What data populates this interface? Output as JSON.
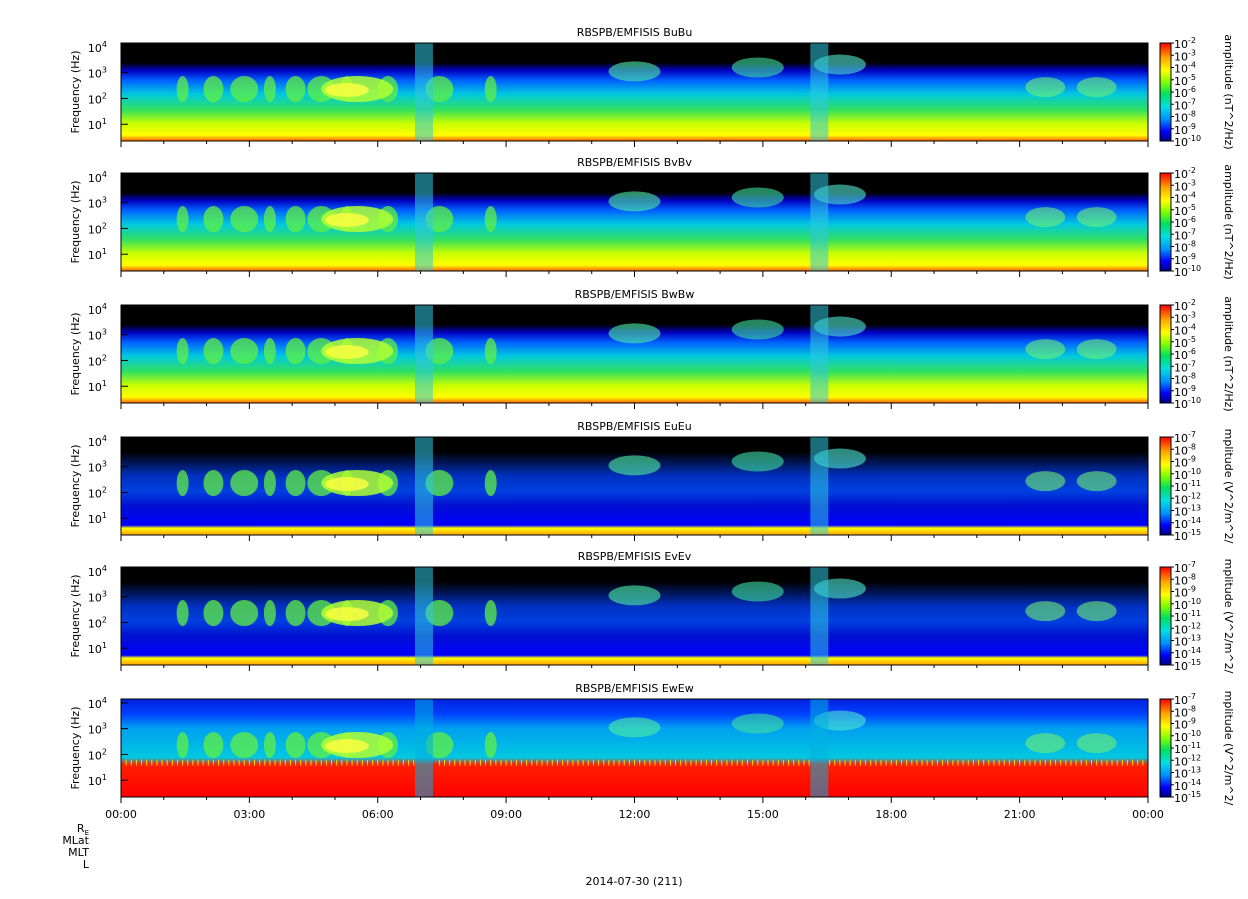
{
  "chart_data": [
    {
      "type": "heatmap",
      "title": "RBSPB/EMFISIS  BuBu",
      "ylabel": "Frequency (Hz)",
      "zlabel": "amplitude (nT^2/Hz)",
      "y_scale": "log",
      "y_ticks": [
        "10",
        "10",
        "10",
        "10"
      ],
      "y_tick_exponents": [
        "1",
        "2",
        "3",
        "4"
      ],
      "z_scale": "log",
      "z_ticks": [
        "10",
        "10",
        "10",
        "10",
        "10",
        "10",
        "10",
        "10",
        "10"
      ],
      "z_tick_exponents": [
        "-2",
        "-3",
        "-4",
        "-5",
        "-6",
        "-7",
        "-8",
        "-9",
        "-10"
      ],
      "zlim": [
        1e-10,
        0.01
      ]
    },
    {
      "type": "heatmap",
      "title": "RBSPB/EMFISIS  BvBv",
      "ylabel": "Frequency (Hz)",
      "zlabel": "amplitude (nT^2/Hz)",
      "y_scale": "log",
      "y_ticks": [
        "10",
        "10",
        "10",
        "10"
      ],
      "y_tick_exponents": [
        "1",
        "2",
        "3",
        "4"
      ],
      "z_scale": "log",
      "z_ticks": [
        "10",
        "10",
        "10",
        "10",
        "10",
        "10",
        "10",
        "10",
        "10"
      ],
      "z_tick_exponents": [
        "-2",
        "-3",
        "-4",
        "-5",
        "-6",
        "-7",
        "-8",
        "-9",
        "-10"
      ],
      "zlim": [
        1e-10,
        0.01
      ]
    },
    {
      "type": "heatmap",
      "title": "RBSPB/EMFISIS  BwBw",
      "ylabel": "Frequency (Hz)",
      "zlabel": "amplitude (nT^2/Hz)",
      "y_scale": "log",
      "y_ticks": [
        "10",
        "10",
        "10",
        "10"
      ],
      "y_tick_exponents": [
        "1",
        "2",
        "3",
        "4"
      ],
      "z_scale": "log",
      "z_ticks": [
        "10",
        "10",
        "10",
        "10",
        "10",
        "10",
        "10",
        "10",
        "10"
      ],
      "z_tick_exponents": [
        "-2",
        "-3",
        "-4",
        "-5",
        "-6",
        "-7",
        "-8",
        "-9",
        "-10"
      ],
      "zlim": [
        1e-10,
        0.01
      ]
    },
    {
      "type": "heatmap",
      "title": "RBSPB/EMFISIS  EuEu",
      "ylabel": "Frequency (Hz)",
      "zlabel": "mplitude (V^2/m^2/",
      "y_scale": "log",
      "y_ticks": [
        "10",
        "10",
        "10",
        "10"
      ],
      "y_tick_exponents": [
        "1",
        "2",
        "3",
        "4"
      ],
      "z_scale": "log",
      "z_ticks": [
        "10",
        "10",
        "10",
        "10",
        "10",
        "10",
        "10",
        "10",
        "10"
      ],
      "z_tick_exponents": [
        "-7",
        "-8",
        "-9",
        "-10",
        "-11",
        "-12",
        "-13",
        "-14",
        "-15"
      ],
      "zlim": [
        1e-15,
        1e-07
      ]
    },
    {
      "type": "heatmap",
      "title": "RBSPB/EMFISIS  EvEv",
      "ylabel": "Frequency (Hz)",
      "zlabel": "mplitude (V^2/m^2/",
      "y_scale": "log",
      "y_ticks": [
        "10",
        "10",
        "10",
        "10"
      ],
      "y_tick_exponents": [
        "1",
        "2",
        "3",
        "4"
      ],
      "z_scale": "log",
      "z_ticks": [
        "10",
        "10",
        "10",
        "10",
        "10",
        "10",
        "10",
        "10",
        "10"
      ],
      "z_tick_exponents": [
        "-7",
        "-8",
        "-9",
        "-10",
        "-11",
        "-12",
        "-13",
        "-14",
        "-15"
      ],
      "zlim": [
        1e-15,
        1e-07
      ]
    },
    {
      "type": "heatmap",
      "title": "RBSPB/EMFISIS  EwEw",
      "ylabel": "Frequency (Hz)",
      "zlabel": "mplitude (V^2/m^2/",
      "y_scale": "log",
      "y_ticks": [
        "10",
        "10",
        "10",
        "10"
      ],
      "y_tick_exponents": [
        "1",
        "2",
        "3",
        "4"
      ],
      "z_scale": "log",
      "z_ticks": [
        "10",
        "10",
        "10",
        "10",
        "10",
        "10",
        "10",
        "10",
        "10"
      ],
      "z_tick_exponents": [
        "-7",
        "-8",
        "-9",
        "-10",
        "-11",
        "-12",
        "-13",
        "-14",
        "-15"
      ],
      "zlim": [
        1e-15,
        1e-07
      ]
    }
  ],
  "x_axis": {
    "ticks": [
      "00:00",
      "03:00",
      "06:00",
      "09:00",
      "12:00",
      "15:00",
      "18:00",
      "21:00",
      "00:00"
    ],
    "ephemeris_labels": [
      "R",
      "MLat",
      "MLT",
      "L"
    ],
    "ephemeris_subscript": "E",
    "date_label": "2014-07-30 (211)"
  },
  "colors": {
    "background": "#000000",
    "colorbar": [
      "#ff0000",
      "#ffa500",
      "#ffff00",
      "#7fff00",
      "#00e060",
      "#00e0e0",
      "#0090ff",
      "#0000ff",
      "#00007f"
    ]
  }
}
